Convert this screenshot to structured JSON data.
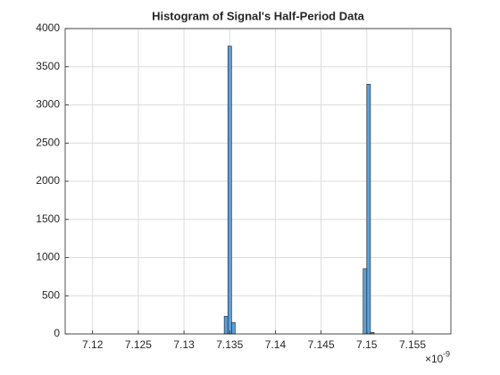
{
  "chart_data": {
    "type": "histogram",
    "title": "Histogram of Signal's Half-Period Data",
    "bins": [
      7.1344,
      7.1348,
      7.1352,
      7.1356,
      7.136,
      7.1364,
      7.1368,
      7.1372,
      7.1376,
      7.138,
      7.1384,
      7.1388,
      7.1392,
      7.1396,
      7.14,
      7.1404,
      7.1408,
      7.1412,
      7.1416,
      7.142,
      7.1424,
      7.1428,
      7.1432,
      7.1436,
      7.144,
      7.1444,
      7.1448,
      7.1452,
      7.1456,
      7.146,
      7.1464,
      7.1468,
      7.1472,
      7.1476,
      7.148,
      7.1484,
      7.1488,
      7.1492,
      7.1496,
      7.15,
      7.1504,
      7.1508
    ],
    "counts": [
      230,
      3770,
      150,
      0,
      0,
      0,
      0,
      0,
      0,
      0,
      0,
      0,
      0,
      0,
      0,
      0,
      0,
      0,
      0,
      0,
      0,
      0,
      0,
      0,
      0,
      0,
      0,
      0,
      0,
      0,
      0,
      0,
      0,
      0,
      0,
      0,
      0,
      0,
      855,
      3270,
      20
    ],
    "color": "#5d9fd8",
    "xlim": [
      7.117,
      7.1592
    ],
    "xticks": [
      7.12,
      7.125,
      7.13,
      7.135,
      7.14,
      7.145,
      7.15,
      7.155
    ],
    "x_multiplier": "×10",
    "x_exponent": "-9",
    "ylim": [
      0,
      4000
    ],
    "yticks": [
      0,
      500,
      1000,
      1500,
      2000,
      2500,
      3000,
      3500,
      4000
    ],
    "grid": true
  }
}
